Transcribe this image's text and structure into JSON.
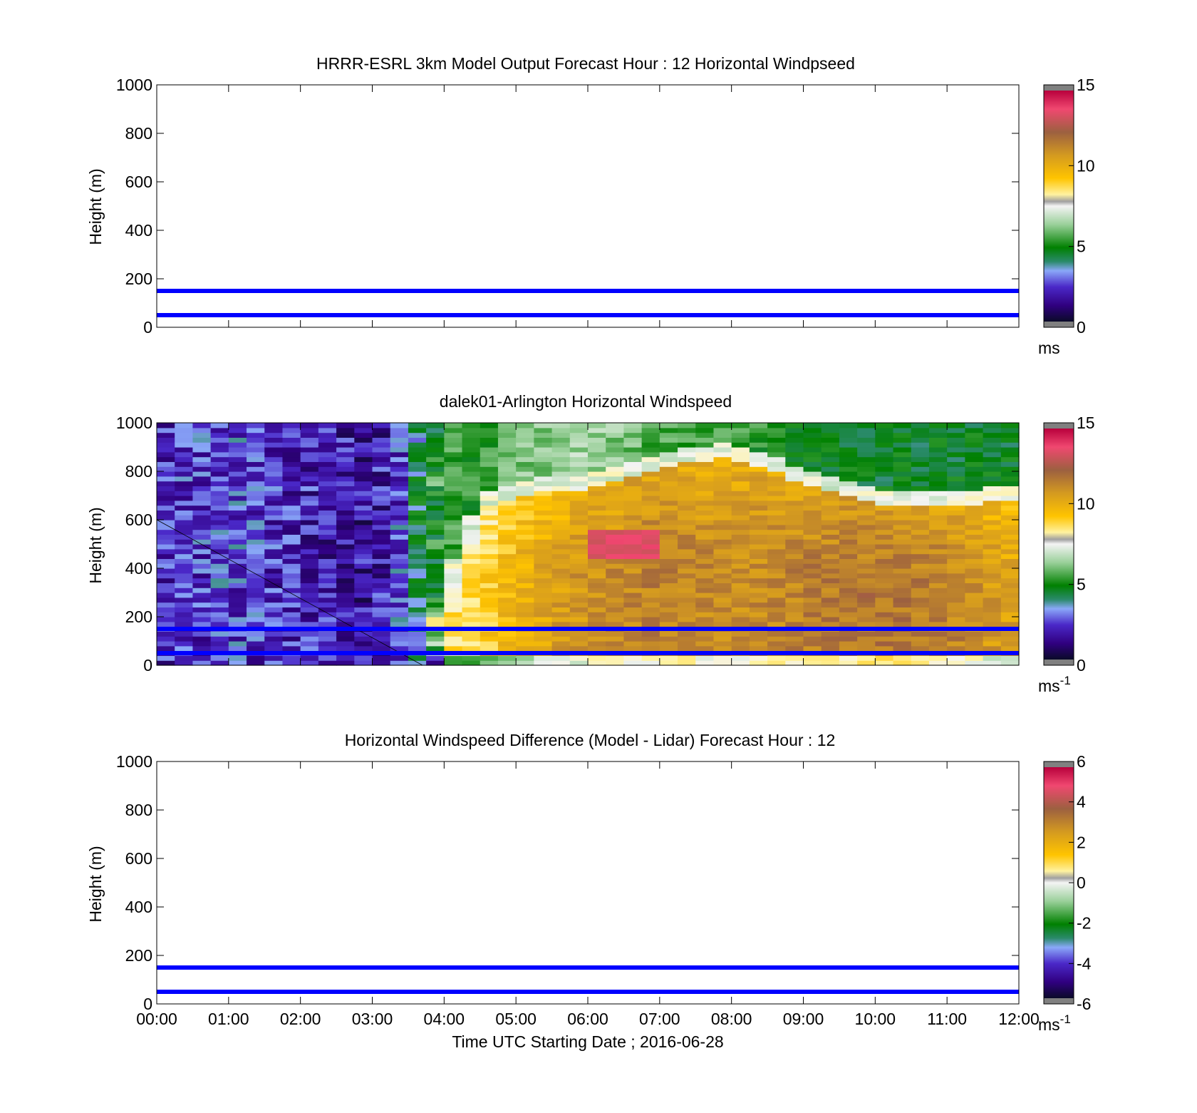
{
  "figure": {
    "xlabel": "Time UTC  Starting Date ; 2016-06-28",
    "x_ticks": [
      "00:00",
      "01:00",
      "02:00",
      "03:00",
      "04:00",
      "05:00",
      "06:00",
      "07:00",
      "08:00",
      "09:00",
      "10:00",
      "11:00",
      "12:00"
    ],
    "guide_line_color": "#0000ff"
  },
  "chart_data": [
    {
      "type": "heatmap",
      "title": "HRRR-ESRL 3km Model Output   Forecast Hour : 12 Horizontal Windpseed",
      "ylabel": "Height (m)",
      "xlim": [
        "00:00",
        "12:00"
      ],
      "ylim": [
        0,
        1000
      ],
      "y_ticks": [
        0,
        200,
        400,
        600,
        800,
        1000
      ],
      "guide_lines_m": [
        50,
        150
      ],
      "colorbar": {
        "ticks": [
          0,
          5,
          10,
          15
        ],
        "range": [
          0,
          15
        ],
        "label": "ms",
        "label_sup": ""
      },
      "data": "none"
    },
    {
      "type": "heatmap",
      "title": "dalek01-Arlington  Horizontal Windspeed",
      "ylabel": "Height (m)",
      "xlim": [
        "00:00",
        "12:00"
      ],
      "ylim": [
        0,
        1000
      ],
      "y_ticks": [
        0,
        200,
        400,
        600,
        800,
        1000
      ],
      "guide_lines_m": [
        50,
        150
      ],
      "colorbar": {
        "ticks": [
          0,
          5,
          10,
          15
        ],
        "range": [
          0,
          15
        ],
        "label": "ms",
        "label_sup": "-1"
      },
      "data_end_hour": 11.85,
      "wind_field": {
        "hours": [
          0.0,
          1.0,
          2.0,
          3.0,
          3.4,
          3.7,
          4.0,
          4.5,
          5.0,
          6.0,
          7.0,
          8.0,
          9.0,
          10.0,
          11.0,
          11.85
        ],
        "jet_top_m": [
          0,
          0,
          0,
          0,
          0,
          0,
          280,
          650,
          700,
          730,
          820,
          860,
          750,
          670,
          660,
          680
        ],
        "jet_core_ms": [
          2,
          2.5,
          2.5,
          2,
          2,
          2,
          8.5,
          9,
          10,
          11,
          11.5,
          11,
          11.5,
          11.8,
          11.5,
          10.5
        ],
        "aloft_ms": [
          2,
          2.5,
          2,
          1.5,
          2.5,
          4.5,
          5.5,
          5,
          6,
          6.5,
          5.5,
          5.5,
          4.5,
          4.5,
          4.5,
          4.5
        ]
      },
      "wind_maximum": {
        "time_from": "06:00",
        "time_to": "07:00",
        "height_from_m": 440,
        "height_to_m": 560,
        "speed_ms": 13.5
      }
    },
    {
      "type": "heatmap",
      "title": "Horizontal Windspeed Difference (Model - Lidar) Forecast Hour : 12",
      "ylabel": "Height (m)",
      "xlim": [
        "00:00",
        "12:00"
      ],
      "ylim": [
        0,
        1000
      ],
      "y_ticks": [
        0,
        200,
        400,
        600,
        800,
        1000
      ],
      "guide_lines_m": [
        50,
        150
      ],
      "colorbar": {
        "ticks": [
          -6,
          -4,
          -2,
          0,
          2,
          4,
          6
        ],
        "range": [
          -6,
          6
        ],
        "label": "ms",
        "label_sup": "-1"
      },
      "data": "none"
    }
  ]
}
